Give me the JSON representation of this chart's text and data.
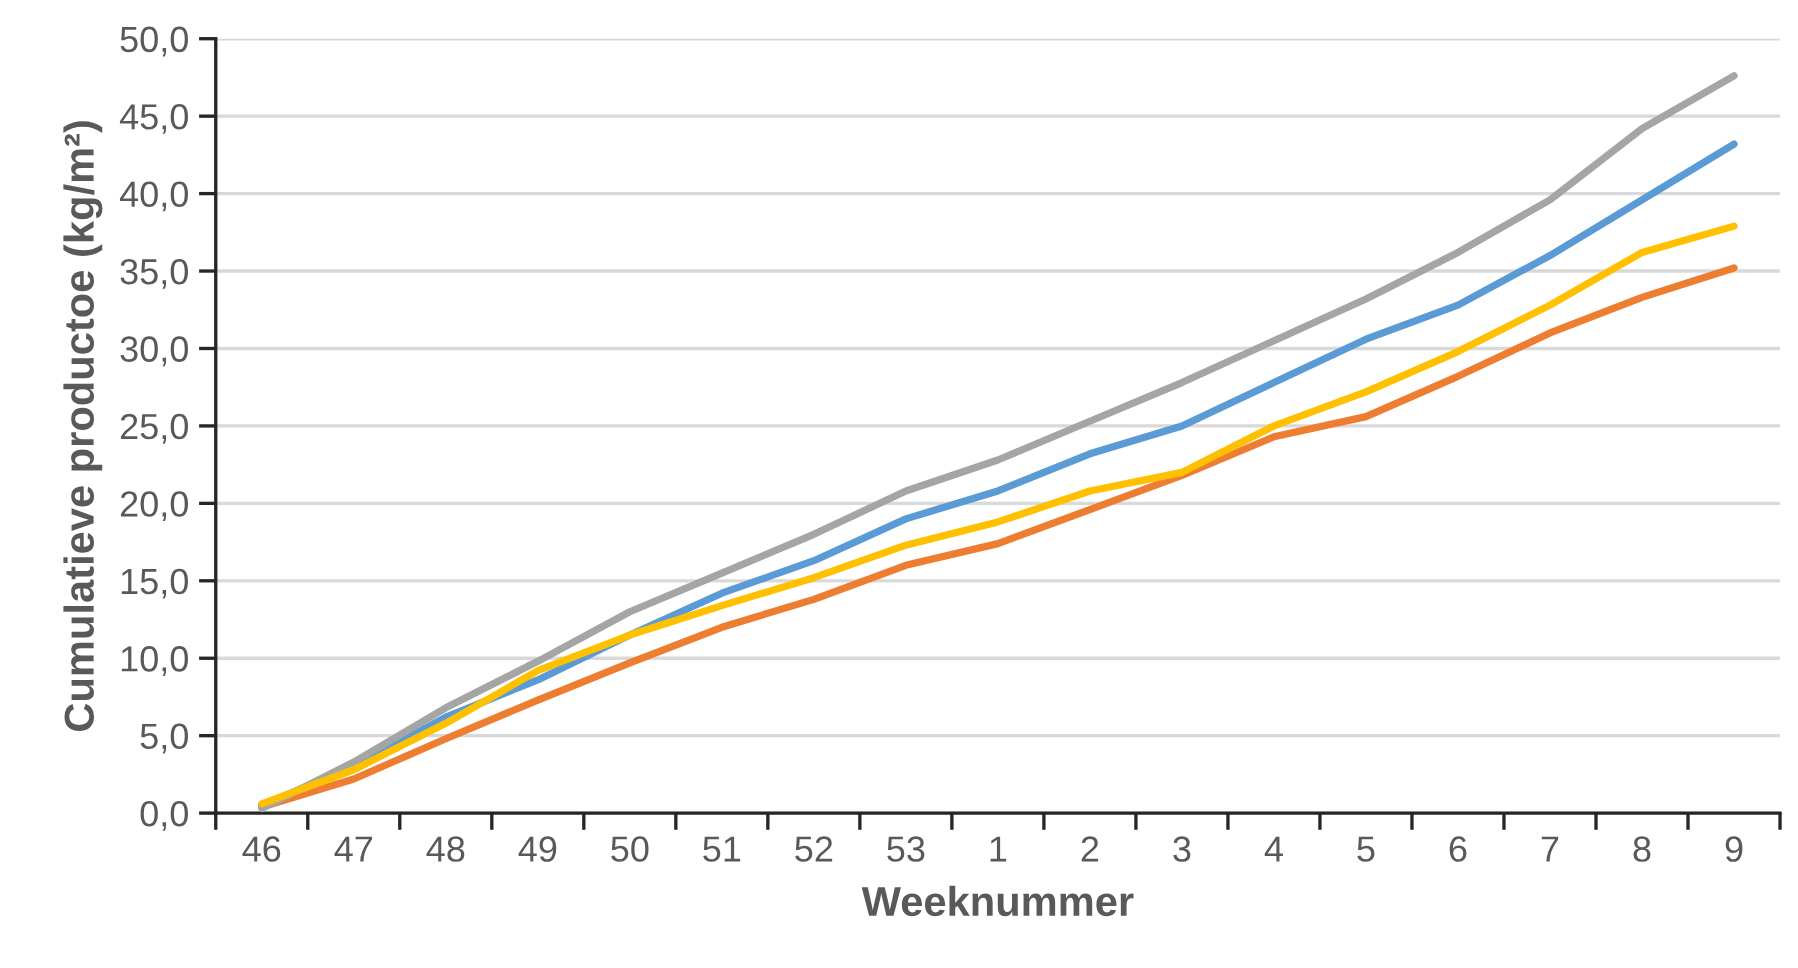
{
  "chart_data": {
    "type": "line",
    "xlabel": "Weeknummer",
    "ylabel": "Cumulatieve productoe (kg/m²)",
    "categories": [
      "46",
      "47",
      "48",
      "49",
      "50",
      "51",
      "52",
      "53",
      "1",
      "2",
      "3",
      "4",
      "5",
      "6",
      "7",
      "8",
      "9"
    ],
    "series": [
      {
        "color": "#5b9bd5",
        "values": [
          0.5,
          3.0,
          6.2,
          8.6,
          11.5,
          14.2,
          16.3,
          19.0,
          20.8,
          23.2,
          25.0,
          27.8,
          30.6,
          32.8,
          36.0,
          39.6,
          43.2
        ]
      },
      {
        "color": "#ed7d31",
        "values": [
          0.4,
          2.2,
          4.8,
          7.3,
          9.7,
          12.0,
          13.8,
          16.0,
          17.4,
          19.6,
          21.8,
          24.3,
          25.6,
          28.2,
          31.0,
          33.3,
          35.2
        ]
      },
      {
        "color": "#a5a5a5",
        "values": [
          0.3,
          3.3,
          6.8,
          9.8,
          13.0,
          15.5,
          18.0,
          20.8,
          22.8,
          25.3,
          27.8,
          30.5,
          33.2,
          36.2,
          39.6,
          44.2,
          47.6
        ]
      },
      {
        "color": "#ffc000",
        "values": [
          0.6,
          2.8,
          5.8,
          9.2,
          11.5,
          13.4,
          15.2,
          17.3,
          18.8,
          20.8,
          22.0,
          25.0,
          27.2,
          29.8,
          32.8,
          36.2,
          37.9
        ]
      }
    ],
    "ylim": [
      0,
      50
    ],
    "yticks": [
      {
        "value": 0,
        "label": "0,0"
      },
      {
        "value": 5,
        "label": "5,0"
      },
      {
        "value": 10,
        "label": "10,0"
      },
      {
        "value": 15,
        "label": "15,0"
      },
      {
        "value": 20,
        "label": "20,0"
      },
      {
        "value": 25,
        "label": "25,0"
      },
      {
        "value": 30,
        "label": "30,0"
      },
      {
        "value": 35,
        "label": "35,0"
      },
      {
        "value": 40,
        "label": "40,0"
      },
      {
        "value": 45,
        "label": "45,0"
      },
      {
        "value": 50,
        "label": "50,0"
      }
    ],
    "grid": "y",
    "marker": "none",
    "line_style": "solid",
    "legend": false
  }
}
